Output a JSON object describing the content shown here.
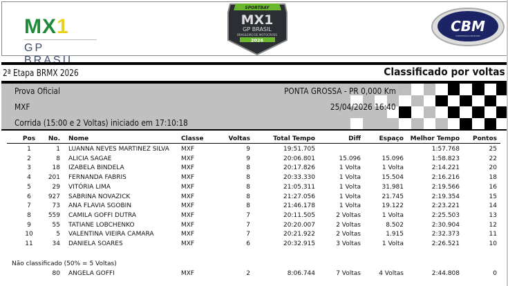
{
  "header": {
    "logo_left": {
      "text": "MX1",
      "subtext": "GP BRASIL"
    },
    "logo_center": {
      "brand": "SPORTBAY",
      "title": "MX1",
      "subtitle": "GP BRASIL",
      "tagline": "BRASILEIRO DE MOTOCROSS",
      "year": "2026"
    },
    "logo_right": {
      "text": "CBM",
      "subtext": "CONFEDERAÇÃO BRASILEIRA DE MOTOCICLISMO"
    }
  },
  "event": {
    "title": "2ª Etapa BRMX 2026",
    "report_type": "Classificado por voltas"
  },
  "info": {
    "session": "Prova Oficial",
    "location": "PONTA GROSSA - PR 0,000 Km",
    "class": "MXF",
    "datetime": "25/04/2026 16:40",
    "race": "Corrida (15:00 e 2 Voltas) iniciado em 17:10:18"
  },
  "table": {
    "columns": [
      "Pos",
      "No.",
      "Nome",
      "Classe",
      "Voltas",
      "Total Tempo",
      "Diff",
      "Espaço",
      "Melhor Tempo",
      "Pontos"
    ],
    "rows": [
      [
        "1",
        "1",
        "LUANNA NEVES MARTINEZ SILVA",
        "MXF",
        "9",
        "19:51.705",
        "",
        "",
        "1:57.768",
        "25"
      ],
      [
        "2",
        "8",
        "ALICIA SAGAE",
        "MXF",
        "9",
        "20:06.801",
        "15.096",
        "15.096",
        "1:58.823",
        "22"
      ],
      [
        "3",
        "18",
        "IZABELA BINDELA",
        "MXF",
        "8",
        "20:17.826",
        "1 Volta",
        "1 Volta",
        "2:14.221",
        "20"
      ],
      [
        "4",
        "201",
        "FERNANDA FABRIS",
        "MXF",
        "8",
        "20:33.330",
        "1 Volta",
        "15.504",
        "2:16.216",
        "18"
      ],
      [
        "5",
        "29",
        "VITÓRIA LIMA",
        "MXF",
        "8",
        "21:05.311",
        "1 Volta",
        "31.981",
        "2:19.566",
        "16"
      ],
      [
        "6",
        "927",
        "SABRINA NOVAZICK",
        "MXF",
        "8",
        "21:27.056",
        "1 Volta",
        "21.745",
        "2:19.354",
        "15"
      ],
      [
        "7",
        "73",
        "ANA FLAVIA SGOBIN",
        "MXF",
        "8",
        "21:46.178",
        "1 Volta",
        "19.122",
        "2:23.221",
        "14"
      ],
      [
        "8",
        "559",
        "CAMILA GOFFI DUTRA",
        "MXF",
        "7",
        "20:11.505",
        "2 Voltas",
        "1 Volta",
        "2:25.503",
        "13"
      ],
      [
        "9",
        "55",
        "TATIANE LOBCHENKO",
        "MXF",
        "7",
        "20:20.007",
        "2 Voltas",
        "8.502",
        "2:30.904",
        "12"
      ],
      [
        "10",
        "5",
        "VALENTINA VIEIRA CAMARA",
        "MXF",
        "7",
        "20:21.922",
        "2 Voltas",
        "1.915",
        "2:32.373",
        "11"
      ],
      [
        "11",
        "34",
        "DANIELA SOARES",
        "MXF",
        "6",
        "20:32.915",
        "3 Voltas",
        "1 Volta",
        "2:26.521",
        "10"
      ]
    ],
    "not_classified_label": "Não classificado (50% = 5 Voltas)",
    "not_classified": [
      [
        "",
        "80",
        "ANGELA GOFFI",
        "MXF",
        "2",
        "8:06.744",
        "7 Voltas",
        "4 Voltas",
        "2:44.808",
        "0"
      ]
    ]
  }
}
